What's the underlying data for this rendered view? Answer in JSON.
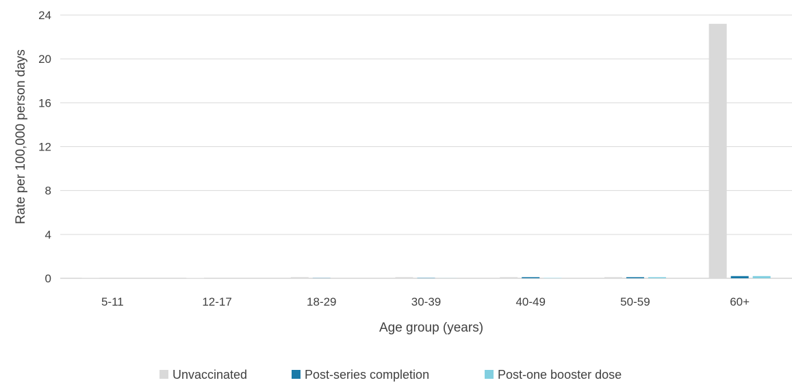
{
  "chart_data": {
    "type": "bar",
    "title": "",
    "xlabel": "Age group (years)",
    "ylabel": "Rate per 100,000 person days",
    "ylim": [
      0,
      24
    ],
    "yticks": [
      0,
      4,
      8,
      12,
      16,
      20,
      24
    ],
    "grid": true,
    "legend_position": "bottom",
    "categories": [
      "5-11",
      "12-17",
      "18-29",
      "30-39",
      "40-49",
      "50-59",
      "60+"
    ],
    "series": [
      {
        "name": "Unvaccinated",
        "color": "#d9d9d9",
        "values": [
          0.02,
          0.03,
          0.1,
          0.1,
          0.1,
          0.1,
          23.2
        ]
      },
      {
        "name": "Post-series completion",
        "color": "#1a7aa8",
        "values": [
          0.0,
          0.0,
          0.02,
          0.03,
          0.1,
          0.1,
          0.2
        ]
      },
      {
        "name": "Post-one booster dose",
        "color": "#82cfe0",
        "values": [
          0.0,
          0.0,
          0.0,
          0.01,
          0.03,
          0.1,
          0.2
        ]
      }
    ]
  }
}
